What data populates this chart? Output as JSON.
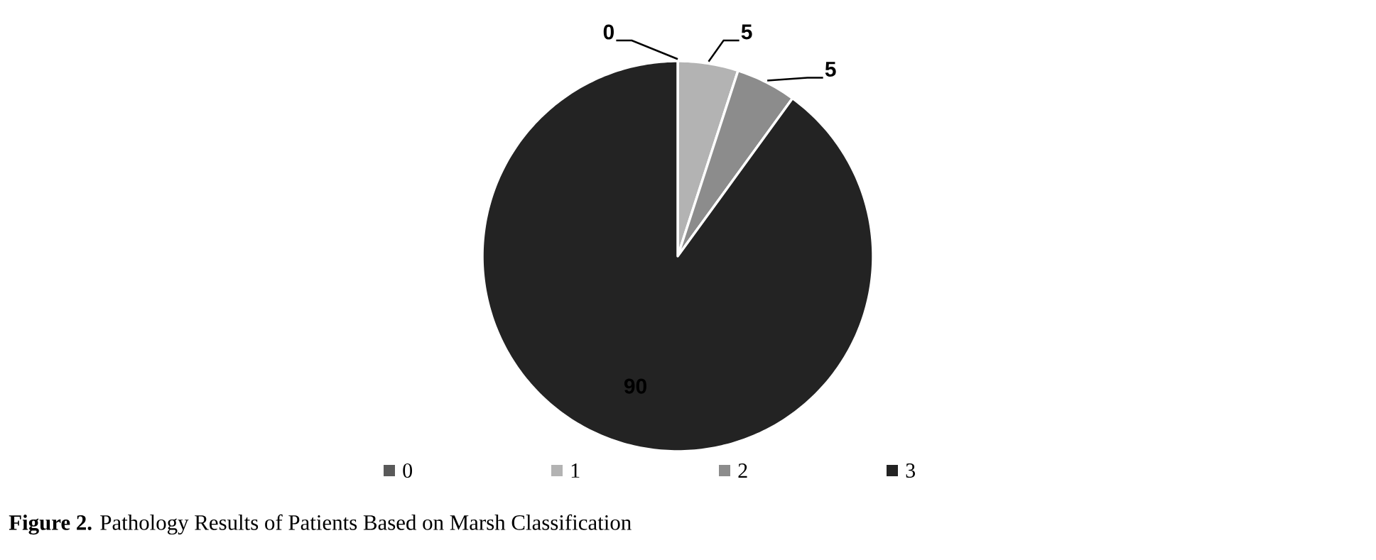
{
  "chart_data": {
    "type": "pie",
    "categories": [
      "0",
      "1",
      "2",
      "3"
    ],
    "values": [
      0,
      5,
      5,
      90
    ],
    "colors": [
      "#595959",
      "#b3b3b3",
      "#8c8c8c",
      "#232323"
    ],
    "value_labels": [
      "0",
      "5",
      "5",
      "90"
    ],
    "legend": "bottom",
    "annotations": [
      "**Figure 2.** Pathology Results of Patients Based on Marsh Classification"
    ]
  }
}
